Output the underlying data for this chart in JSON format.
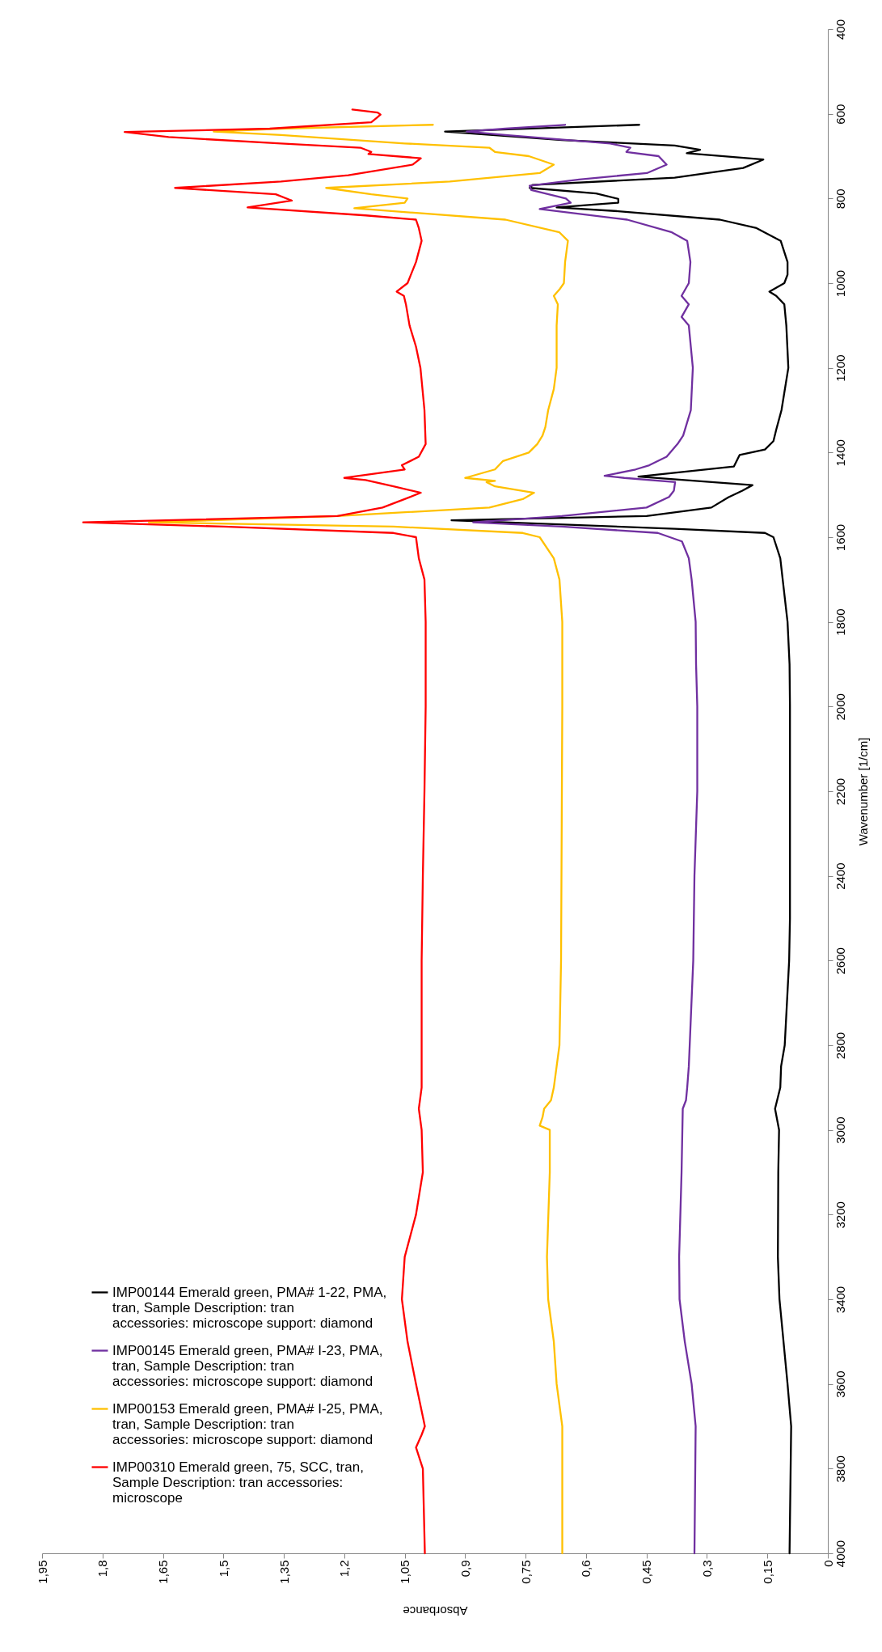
{
  "chart_data": {
    "type": "line",
    "xlabel": "Absorbance",
    "ylabel": "Wavenumber [1/cm]",
    "ylim": [
      4000,
      400
    ],
    "yticks": [
      400,
      600,
      800,
      1000,
      1200,
      1400,
      1600,
      1800,
      2000,
      2200,
      2400,
      2600,
      2800,
      3000,
      3200,
      3400,
      3600,
      3800,
      4000
    ],
    "xlim": [
      1.95,
      0
    ],
    "xticks": [
      0,
      {
        "value": 0.15,
        "label": "0,15"
      },
      {
        "value": 0.3,
        "label": "0,3"
      },
      {
        "value": 0.45,
        "label": "0,45"
      },
      {
        "value": 0.6,
        "label": "0,6"
      },
      {
        "value": 0.75,
        "label": "0,75"
      },
      {
        "value": 0.9,
        "label": "0,9"
      },
      {
        "value": 1.05,
        "label": "1,05"
      },
      {
        "value": 1.2,
        "label": "1,2"
      },
      {
        "value": 1.35,
        "label": "1,35"
      },
      {
        "value": 1.5,
        "label": "1,5"
      },
      {
        "value": 1.65,
        "label": "1,65"
      },
      {
        "value": 1.8,
        "label": "1,8"
      },
      {
        "value": 1.95,
        "label": "1,95"
      }
    ],
    "legend": "bottom left",
    "line_style": "solid",
    "series": [
      {
        "name": "IMP00144 Emerald green, PMA# 1-22, PMA, tran, Sample Description: tran accessories: microscope support: diamond",
        "color": "#000000",
        "values": [
          4000,
          3700,
          3600,
          3400,
          3300,
          3100,
          3000,
          2950,
          2900,
          2850,
          2800,
          2600,
          2500,
          2000,
          1900,
          1800,
          1700,
          1650,
          1600,
          1590,
          1580,
          1560,
          1550,
          1530,
          1506,
          1490,
          1477,
          1457,
          1433,
          1406,
          1393,
          1373,
          1346,
          1300,
          1200,
          1100,
          1050,
          1030,
          1020,
          1000,
          980,
          950,
          900,
          870,
          850,
          830,
          821,
          810,
          801,
          788,
          775,
          768,
          751,
          728,
          708,
          693,
          685,
          675,
          662,
          642,
          626
        ],
        "x": [
          0.095,
          0.091,
          0.1,
          0.12,
          0.124,
          0.123,
          0.121,
          0.131,
          0.118,
          0.116,
          0.107,
          0.096,
          0.094,
          0.094,
          0.095,
          0.1,
          0.112,
          0.118,
          0.135,
          0.156,
          0.38,
          0.934,
          0.45,
          0.289,
          0.247,
          0.212,
          0.187,
          0.47,
          0.233,
          0.219,
          0.156,
          0.135,
          0.128,
          0.115,
          0.098,
          0.103,
          0.108,
          0.128,
          0.145,
          0.108,
          0.1,
          0.1,
          0.117,
          0.177,
          0.268,
          0.52,
          0.673,
          0.52,
          0.52,
          0.575,
          0.74,
          0.733,
          0.38,
          0.21,
          0.16,
          0.35,
          0.317,
          0.38,
          0.66,
          0.95,
          0.468
        ]
      },
      {
        "name": "IMP00145 Emerald green, PMA# I-23, PMA, tran, Sample Description: tran accessories: microscope support: diamond",
        "color": "#7030a0",
        "values": [
          4000,
          3700,
          3600,
          3500,
          3400,
          3300,
          3100,
          3000,
          2950,
          2930,
          2900,
          2850,
          2600,
          2400,
          2200,
          2000,
          1900,
          1800,
          1700,
          1650,
          1610,
          1590,
          1575,
          1565,
          1550,
          1530,
          1505,
          1490,
          1470,
          1460,
          1455,
          1440,
          1430,
          1410,
          1380,
          1360,
          1300,
          1200,
          1100,
          1080,
          1050,
          1030,
          1000,
          950,
          900,
          880,
          850,
          825,
          810,
          800,
          780,
          770,
          755,
          740,
          720,
          700,
          690,
          680,
          670,
          650,
          642,
          635,
          626
        ],
        "x": [
          0.331,
          0.328,
          0.338,
          0.355,
          0.368,
          0.369,
          0.363,
          0.361,
          0.36,
          0.352,
          0.349,
          0.345,
          0.334,
          0.331,
          0.324,
          0.324,
          0.327,
          0.328,
          0.338,
          0.345,
          0.362,
          0.422,
          0.66,
          0.88,
          0.66,
          0.45,
          0.394,
          0.382,
          0.379,
          0.505,
          0.554,
          0.477,
          0.443,
          0.4,
          0.373,
          0.359,
          0.34,
          0.335,
          0.345,
          0.363,
          0.345,
          0.363,
          0.345,
          0.341,
          0.349,
          0.387,
          0.498,
          0.715,
          0.638,
          0.65,
          0.736,
          0.74,
          0.617,
          0.449,
          0.4,
          0.42,
          0.5,
          0.49,
          0.54,
          0.8,
          0.896,
          0.8,
          0.652
        ]
      },
      {
        "name": "IMP00153 Emerald green, PMA# I-25, PMA, tran, Sample Description: tran accessories: microscope support: diamond",
        "color": "#ffc000",
        "values": [
          4000,
          3700,
          3600,
          3500,
          3400,
          3300,
          3100,
          3000,
          2990,
          2970,
          2950,
          2930,
          2900,
          2850,
          2800,
          2600,
          2000,
          1800,
          1700,
          1650,
          1600,
          1590,
          1575,
          1565,
          1550,
          1530,
          1510,
          1495,
          1480,
          1470,
          1467,
          1460,
          1440,
          1420,
          1400,
          1380,
          1360,
          1340,
          1300,
          1250,
          1200,
          1100,
          1050,
          1030,
          1015,
          1000,
          950,
          900,
          880,
          850,
          835,
          823,
          810,
          800,
          790,
          775,
          760,
          740,
          720,
          700,
          690,
          680,
          670,
          650,
          642,
          635,
          626
        ],
        "x": [
          0.659,
          0.659,
          0.673,
          0.68,
          0.694,
          0.697,
          0.69,
          0.69,
          0.715,
          0.708,
          0.704,
          0.687,
          0.68,
          0.673,
          0.666,
          0.662,
          0.659,
          0.659,
          0.666,
          0.68,
          0.715,
          0.757,
          1.078,
          1.685,
          1.217,
          0.84,
          0.757,
          0.729,
          0.826,
          0.847,
          0.826,
          0.9,
          0.826,
          0.806,
          0.742,
          0.721,
          0.708,
          0.701,
          0.694,
          0.68,
          0.673,
          0.673,
          0.67,
          0.68,
          0.666,
          0.655,
          0.652,
          0.645,
          0.666,
          0.8,
          1.008,
          1.175,
          1.05,
          1.043,
          1.133,
          1.245,
          0.938,
          0.715,
          0.68,
          0.742,
          0.826,
          0.84,
          1.05,
          1.357,
          1.524,
          1.357,
          0.98
        ]
      },
      {
        "name": "IMP00310 Emerald green, 75, SCC, tran, Sample Description: tran accessories: microscope",
        "color": "#ff0000",
        "values": [
          4000,
          3800,
          3750,
          3720,
          3700,
          3600,
          3500,
          3400,
          3300,
          3200,
          3100,
          3000,
          2950,
          2900,
          2600,
          2400,
          2200,
          2000,
          1800,
          1700,
          1650,
          1600,
          1590,
          1575,
          1565,
          1550,
          1530,
          1510,
          1495,
          1480,
          1465,
          1460,
          1440,
          1430,
          1410,
          1380,
          1300,
          1200,
          1150,
          1100,
          1050,
          1030,
          1020,
          1000,
          950,
          900,
          870,
          850,
          840,
          821,
          805,
          790,
          775,
          760,
          745,
          720,
          705,
          695,
          690,
          680,
          670,
          655,
          643,
          635,
          620,
          610,
          602,
          597,
          590
        ],
        "x": [
          1.0,
          1.005,
          1.022,
          1.008,
          1.0,
          1.022,
          1.043,
          1.057,
          1.05,
          1.022,
          1.005,
          1.008,
          1.015,
          1.008,
          1.008,
          1.005,
          1.001,
          0.998,
          0.998,
          1.001,
          1.015,
          1.022,
          1.078,
          1.5,
          1.848,
          1.217,
          1.105,
          1.05,
          1.01,
          1.078,
          1.147,
          1.2,
          1.05,
          1.057,
          1.015,
          0.998,
          1.001,
          1.011,
          1.022,
          1.038,
          1.047,
          1.052,
          1.07,
          1.043,
          1.022,
          1.008,
          1.015,
          1.022,
          1.147,
          1.44,
          1.33,
          1.37,
          1.62,
          1.357,
          1.19,
          1.03,
          1.01,
          1.14,
          1.133,
          1.16,
          1.357,
          1.636,
          1.745,
          1.385,
          1.133,
          1.12,
          1.11,
          1.117,
          1.18
        ]
      }
    ]
  }
}
